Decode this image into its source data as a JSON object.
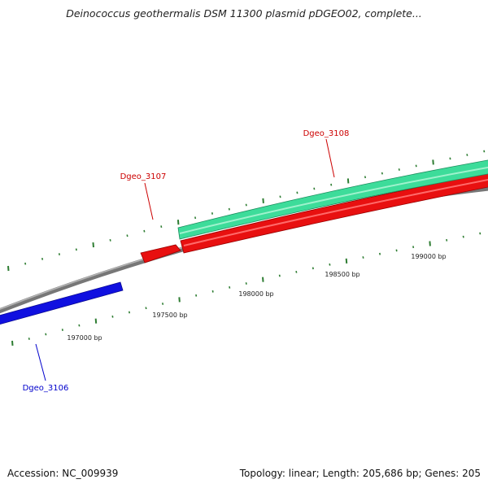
{
  "title": "Deinococcus geothermalis DSM 11300 plasmid pDGEO02, complete...",
  "footer": {
    "accession": "Accession: NC_009939",
    "summary": "Topology: linear; Length: 205,686 bp; Genes: 205"
  },
  "colors": {
    "backbone": "#888888",
    "tick": "#2e7d32",
    "gene_forward_top": "#3ddc9a",
    "gene_forward_bottom": "#e81010",
    "gene_reverse": "#1010e0",
    "label_red": "#cc0000",
    "label_blue": "#0000cc"
  },
  "chart_data": {
    "type": "linear-genome-map",
    "genes": [
      {
        "name": "Dgeo_3106",
        "color": "#1010e0",
        "label_color": "#0000cc"
      },
      {
        "name": "Dgeo_3107",
        "color": "#e81010",
        "label_color": "#cc0000"
      },
      {
        "name": "Dgeo_3108",
        "color": "#3ddc9a",
        "label_color": "#cc0000"
      }
    ],
    "tick_labels": [
      "197000 bp",
      "197500 bp",
      "198000 bp",
      "198500 bp",
      "199000 bp"
    ]
  }
}
